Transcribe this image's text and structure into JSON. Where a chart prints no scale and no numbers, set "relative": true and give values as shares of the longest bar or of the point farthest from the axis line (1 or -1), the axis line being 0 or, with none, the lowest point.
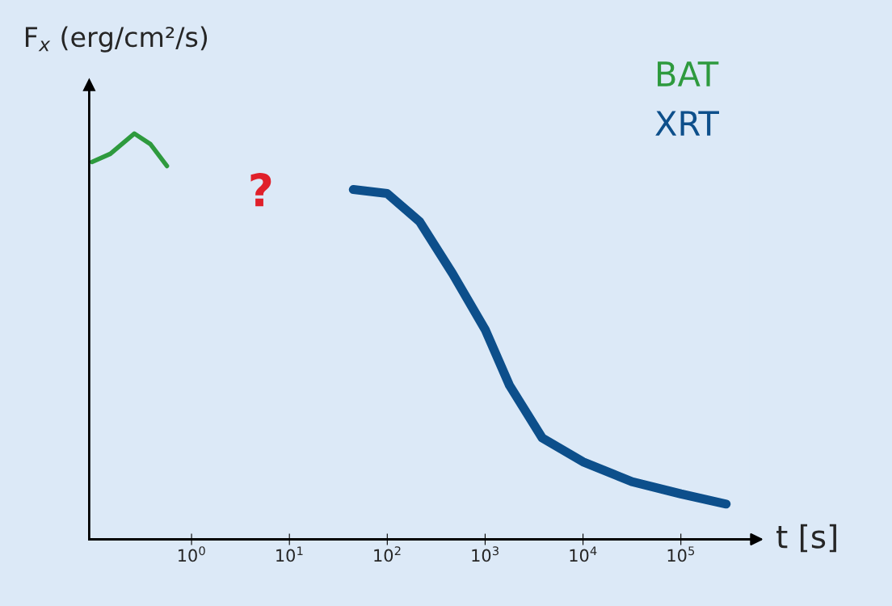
{
  "chart_data": {
    "type": "line",
    "relative": true,
    "log": "x",
    "grid": false,
    "legend": "top right",
    "tick_labels": "x",
    "marker": "none",
    "line_style": "solid",
    "xlabel": "t [s]",
    "ylabel": "F$_{x}$ (erg/cm²/s)",
    "xlim": [
      0.09,
      500000
    ],
    "xticks": [
      {
        "value": 1,
        "label": "10$^{0}$"
      },
      {
        "value": 10,
        "label": "10$^{1}$"
      },
      {
        "value": 100,
        "label": "10$^{2}$"
      },
      {
        "value": 1000,
        "label": "10$^{3}$"
      },
      {
        "value": 10000,
        "label": "10$^{4}$"
      },
      {
        "value": 100000,
        "label": "10$^{5}$"
      }
    ],
    "annotations": [
      "?"
    ],
    "series": [
      {
        "name": "BAT",
        "color": "#2e9a3e",
        "x": [
          0.096,
          0.148,
          0.26,
          0.38,
          0.56
        ],
        "values": [
          0.93,
          0.95,
          1.0,
          0.974,
          0.92
        ]
      },
      {
        "name": "XRT",
        "color": "#0d4f8b",
        "x": [
          45,
          100,
          214,
          464,
          1000,
          1778,
          3830,
          10000,
          31600,
          100000,
          290000
        ],
        "values": [
          0.862,
          0.852,
          0.783,
          0.655,
          0.517,
          0.379,
          0.25,
          0.191,
          0.142,
          0.112,
          0.087
        ]
      }
    ]
  }
}
